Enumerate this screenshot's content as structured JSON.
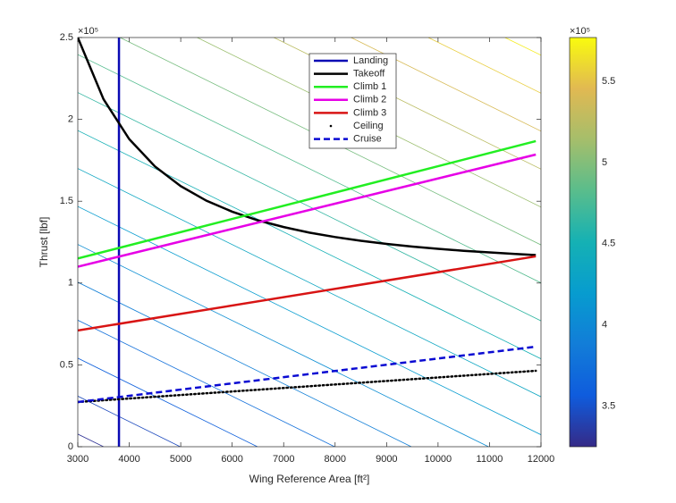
{
  "chart_data": {
    "type": "line",
    "xlabel": "Wing Reference Area [ft²]",
    "ylabel": "Thrust [lbf]",
    "y_exponent_label": "×10⁵",
    "xlim": [
      3000,
      12000
    ],
    "xticks": [
      3000,
      4000,
      5000,
      6000,
      7000,
      8000,
      9000,
      10000,
      11000,
      12000
    ],
    "ylim": [
      0,
      250000
    ],
    "yticks": [
      {
        "value": 0,
        "label": "0"
      },
      {
        "value": 50000,
        "label": "0.5"
      },
      {
        "value": 100000,
        "label": "1"
      },
      {
        "value": 150000,
        "label": "1.5"
      },
      {
        "value": 200000,
        "label": "2"
      },
      {
        "value": 250000,
        "label": "2.5"
      }
    ],
    "legend_position": "top",
    "series": [
      {
        "name": "Landing",
        "color": "#0a0ab4",
        "line_style": "solid",
        "x": [
          3800,
          3800
        ],
        "values": [
          0,
          250000
        ]
      },
      {
        "name": "Takeoff",
        "color": "#000000",
        "line_style": "solid",
        "x": [
          3000,
          3500,
          4000,
          4500,
          5000,
          5500,
          6000,
          6500,
          7000,
          7500,
          8000,
          8500,
          9000,
          9500,
          10000,
          10500,
          11000,
          11500,
          11900
        ],
        "values": [
          250000,
          212300,
          187900,
          171200,
          159200,
          150300,
          143600,
          138300,
          134200,
          130800,
          128100,
          125800,
          123900,
          122300,
          120900,
          119700,
          118700,
          117800,
          117100
        ]
      },
      {
        "name": "Climb 1",
        "color": "#22ee22",
        "line_style": "solid",
        "x": [
          3000,
          11900
        ],
        "values": [
          115000,
          186700
        ]
      },
      {
        "name": "Climb 2",
        "color": "#e600e6",
        "line_style": "solid",
        "x": [
          3000,
          11900
        ],
        "values": [
          110000,
          178500
        ]
      },
      {
        "name": "Climb 3",
        "color": "#d81414",
        "line_style": "solid",
        "x": [
          3000,
          11900
        ],
        "values": [
          71000,
          116300
        ]
      },
      {
        "name": "Ceiling",
        "color": "#000000",
        "line_style": "dotted",
        "x": [
          3000,
          11900
        ],
        "values": [
          27300,
          46400
        ]
      },
      {
        "name": "Cruise",
        "color": "#0a0ad2",
        "line_style": "dashed",
        "x": [
          3000,
          11900
        ],
        "values": [
          27300,
          61100
        ]
      }
    ],
    "colormap": "parula",
    "clim": [
      325000,
      577000
    ],
    "colorbar_exponent_label": "×10⁵",
    "colorbar_ticks": [
      {
        "value": 350000,
        "label": "3.5"
      },
      {
        "value": 400000,
        "label": "4"
      },
      {
        "value": 450000,
        "label": "4.5"
      },
      {
        "value": 500000,
        "label": "5"
      },
      {
        "value": 550000,
        "label": "5.5"
      }
    ],
    "contours": [
      {
        "level": 330000,
        "x": [
          3000,
          3500
        ],
        "y": [
          7700,
          0
        ]
      },
      {
        "level": 345000,
        "x": [
          3000,
          4990
        ],
        "y": [
          30900,
          0
        ]
      },
      {
        "level": 360000,
        "x": [
          3000,
          6490
        ],
        "y": [
          54100,
          0
        ]
      },
      {
        "level": 375000,
        "x": [
          3000,
          7990
        ],
        "y": [
          77300,
          0
        ]
      },
      {
        "level": 390000,
        "x": [
          3000,
          9480
        ],
        "y": [
          100500,
          0
        ]
      },
      {
        "level": 405000,
        "x": [
          3000,
          10980
        ],
        "y": [
          123600,
          0
        ]
      },
      {
        "level": 420000,
        "x": [
          3000,
          12000
        ],
        "y": [
          146800,
          7300
        ]
      },
      {
        "level": 435000,
        "x": [
          3000,
          12000
        ],
        "y": [
          170000,
          30500
        ]
      },
      {
        "level": 450000,
        "x": [
          3000,
          12000
        ],
        "y": [
          193200,
          53700
        ]
      },
      {
        "level": 465000,
        "x": [
          3000,
          12000
        ],
        "y": [
          216400,
          76900
        ]
      },
      {
        "level": 480000,
        "x": [
          3000,
          12000
        ],
        "y": [
          239600,
          100100
        ]
      },
      {
        "level": 495000,
        "x": [
          3820,
          12000
        ],
        "y": [
          250000,
          123300
        ]
      },
      {
        "level": 510000,
        "x": [
          5320,
          12000
        ],
        "y": [
          250000,
          146400
        ]
      },
      {
        "level": 525000,
        "x": [
          6810,
          12000
        ],
        "y": [
          250000,
          169600
        ]
      },
      {
        "level": 540000,
        "x": [
          8310,
          12000
        ],
        "y": [
          250000,
          192800
        ]
      },
      {
        "level": 555000,
        "x": [
          9810,
          12000
        ],
        "y": [
          250000,
          216000
        ]
      },
      {
        "level": 570000,
        "x": [
          11300,
          12000
        ],
        "y": [
          250000,
          239200
        ]
      }
    ]
  }
}
